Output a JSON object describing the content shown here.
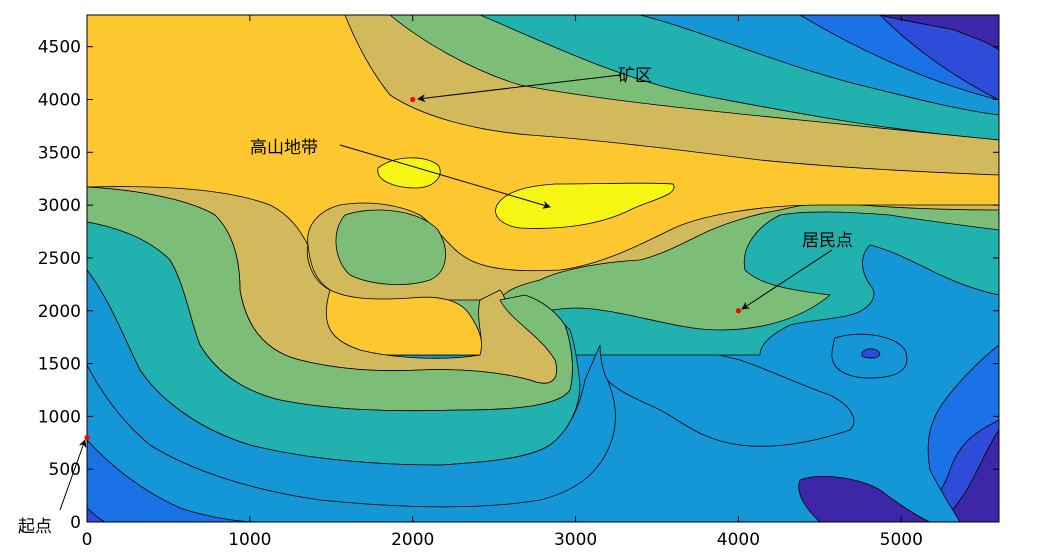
{
  "chart_data": {
    "type": "contour",
    "title": "",
    "xlabel": "",
    "ylabel": "",
    "xlim": [
      0,
      5600
    ],
    "ylim": [
      0,
      4800
    ],
    "x_ticks": [
      0,
      1000,
      2000,
      3000,
      4000,
      5000
    ],
    "y_ticks": [
      0,
      500,
      1000,
      1500,
      2000,
      2500,
      3000,
      3500,
      4000,
      4500
    ],
    "grid": false,
    "colormap": "parula",
    "colors": {
      "level_1": "#3e26a8",
      "level_2": "#2e4cd9",
      "level_3": "#1a72e6",
      "level_4": "#1596d6",
      "level_5": "#21b2b0",
      "level_6": "#7cbe77",
      "level_7": "#d2b95c",
      "level_8": "#fdc730",
      "level_9": "#f5f612",
      "marker": "#ff0000"
    },
    "points": [
      {
        "label": "起点",
        "x": 0,
        "y": 800
      },
      {
        "label": "矿区",
        "x": 2000,
        "y": 4000
      },
      {
        "label": "居民点",
        "x": 4000,
        "y": 2000
      }
    ],
    "annotations": [
      {
        "text": "起点",
        "target": {
          "x": 0,
          "y": 800
        }
      },
      {
        "text": "矿区",
        "target": {
          "x": 2000,
          "y": 4000
        }
      },
      {
        "text": "高山地带",
        "target": {
          "x": 2870,
          "y": 2950
        }
      },
      {
        "text": "居民点",
        "target": {
          "x": 4000,
          "y": 2000
        }
      }
    ]
  }
}
